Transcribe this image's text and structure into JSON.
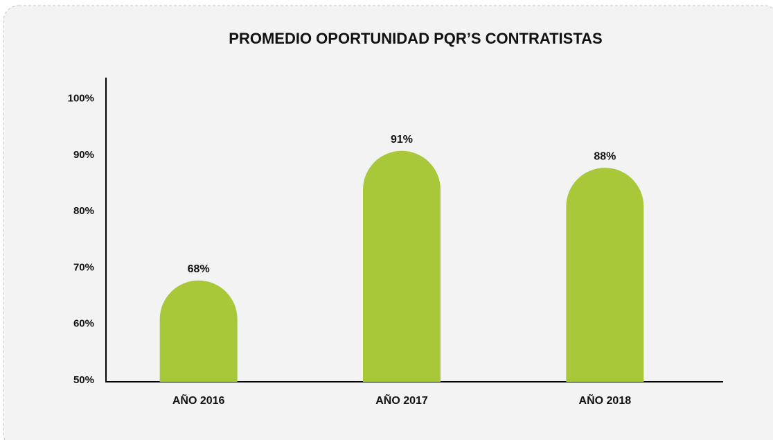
{
  "chart_data": {
    "type": "bar",
    "title": "PROMEDIO OPORTUNIDAD PQR’S CONTRATISTAS",
    "categories": [
      "AÑO 2016",
      "AÑO 2017",
      "AÑO 2018"
    ],
    "values": [
      68,
      91,
      88
    ],
    "value_labels": [
      "68%",
      "91%",
      "88%"
    ],
    "color": "#a8c83a",
    "ylim": [
      50,
      104
    ],
    "yticks": [
      {
        "value": 50,
        "label": "50%"
      },
      {
        "value": 60,
        "label": "60%"
      },
      {
        "value": 70,
        "label": "70%"
      },
      {
        "value": 80,
        "label": "80%"
      },
      {
        "value": 90,
        "label": "90%"
      },
      {
        "value": 100,
        "label": "100%"
      }
    ],
    "grid": false
  }
}
